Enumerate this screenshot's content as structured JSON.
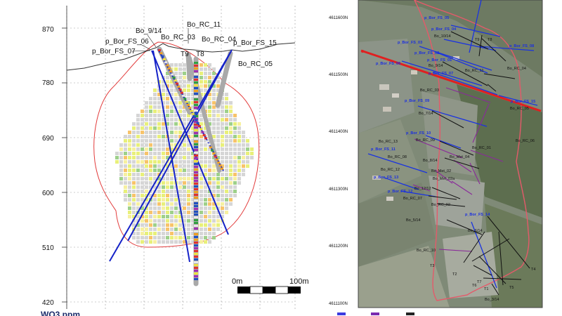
{
  "section": {
    "y_axis_labels": [
      "870",
      "780",
      "690",
      "600",
      "510",
      "420"
    ],
    "drillhole_labels": [
      {
        "label": "Bo_9/14"
      },
      {
        "label": "Bo_RC_11"
      },
      {
        "label": "Bo_RC_03"
      },
      {
        "label": "p_Bor_FS_06"
      },
      {
        "label": "Bo_RC_04"
      },
      {
        "label": "p_Bor_FS_15"
      },
      {
        "label": "p_Bor_FS_07"
      },
      {
        "label": "T9"
      },
      {
        "label": "T8"
      },
      {
        "label": "Bo_RC_05"
      }
    ],
    "scale_bar": {
      "start_label": "0m",
      "end_label": "100m"
    },
    "legend_title": "WO3 ppm"
  },
  "plan": {
    "northing_labels": [
      "4611600N",
      "4611500N",
      "4611400N",
      "4611300N",
      "4611200N",
      "4611100N"
    ],
    "blue_labels": [
      {
        "label": "p_Bor_FS_05"
      },
      {
        "label": "p_Bor_FS_04"
      },
      {
        "label": "p_Bor_FS_03"
      },
      {
        "label": "p_Bor_FS_08"
      },
      {
        "label": "p_Bor_FS_02"
      },
      {
        "label": "p_Bor_FS_01"
      },
      {
        "label": "p_Bor_FS_06"
      },
      {
        "label": "p_Bor_FS_07"
      },
      {
        "label": "p_Bor_FS_09"
      },
      {
        "label": "p_Bor_FS_15"
      },
      {
        "label": "p_Bor_FS_10"
      },
      {
        "label": "p_Bor_FS_11"
      },
      {
        "label": "p_Bor_FS_13"
      },
      {
        "label": "p_Bor_FS_12"
      },
      {
        "label": "p_Bor_FS_14"
      }
    ],
    "black_labels": [
      {
        "label": "Bo_10/14"
      },
      {
        "label": "T9"
      },
      {
        "label": "T8"
      },
      {
        "label": "Bo_9/14"
      },
      {
        "label": "Bo_RC_11"
      },
      {
        "label": "Bo_RC_04"
      },
      {
        "label": "Bo_RC_03"
      },
      {
        "label": "Bo_RC_05"
      },
      {
        "label": "Bo_7/14"
      },
      {
        "label": "Bo_RC_13"
      },
      {
        "label": "Bo_RC_09"
      },
      {
        "label": "Bo_RC_01"
      },
      {
        "label": "Bo_RC_06"
      },
      {
        "label": "Bo_RC_08"
      },
      {
        "label": "Bo_8/14"
      },
      {
        "label": "Bo_Met_04"
      },
      {
        "label": "Bo_RC_12"
      },
      {
        "label": "Bo_Met_02"
      },
      {
        "label": "Bo_Met_02a"
      },
      {
        "label": "Bo_12/12"
      },
      {
        "label": "Bo_RC_07"
      },
      {
        "label": "Bo_RC_02"
      },
      {
        "label": "Bo_5/14"
      },
      {
        "label": "Bo_6/14"
      },
      {
        "label": "Bo_RC_10"
      },
      {
        "label": "T3"
      },
      {
        "label": "T2"
      },
      {
        "label": "T7"
      },
      {
        "label": "T6"
      },
      {
        "label": "T1"
      },
      {
        "label": "T5"
      },
      {
        "label": "T4"
      },
      {
        "label": "Bo_3/14"
      }
    ]
  }
}
